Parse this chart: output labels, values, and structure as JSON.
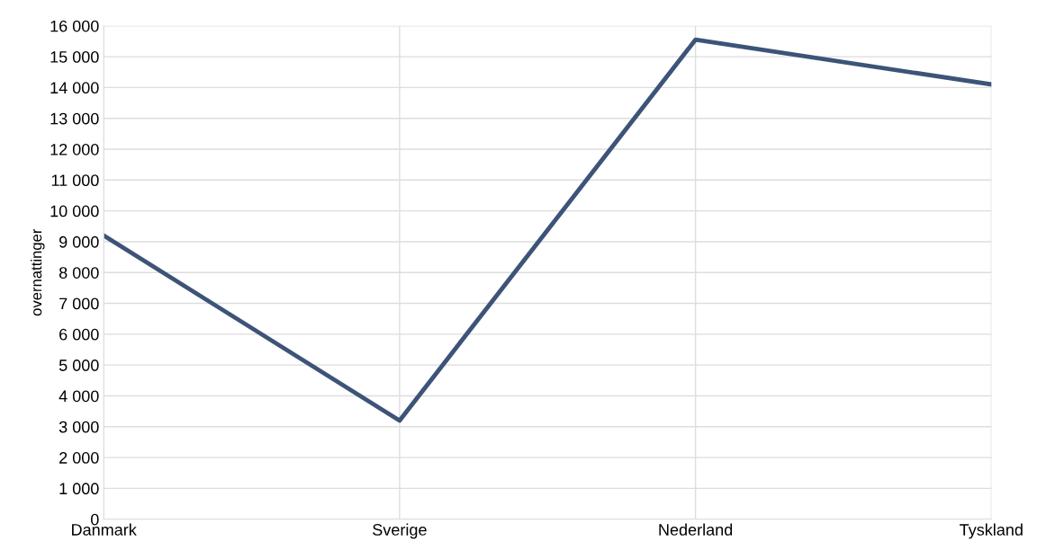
{
  "chart_data": {
    "type": "line",
    "ylabel": "overnattinger",
    "categories": [
      "Danmark",
      "Sverige",
      "Nederland",
      "Tyskland"
    ],
    "series": [
      {
        "color": "#3d5478",
        "values": [
          9200,
          3200,
          15550,
          14100
        ]
      }
    ],
    "ylim": [
      0,
      16000
    ],
    "yticks": [
      0,
      {
        "value": 1000,
        "label": "1 000"
      },
      {
        "value": 2000,
        "label": "2 000"
      },
      {
        "value": 3000,
        "label": "3 000"
      },
      {
        "value": 4000,
        "label": "4 000"
      },
      {
        "value": 5000,
        "label": "5 000"
      },
      {
        "value": 6000,
        "label": "6 000"
      },
      {
        "value": 7000,
        "label": "7 000"
      },
      {
        "value": 8000,
        "label": "8 000"
      },
      {
        "value": 9000,
        "label": "9 000"
      },
      {
        "value": 10000,
        "label": "10 000"
      },
      {
        "value": 11000,
        "label": "11 000"
      },
      {
        "value": 12000,
        "label": "12 000"
      },
      {
        "value": 13000,
        "label": "13 000"
      },
      {
        "value": 14000,
        "label": "14 000"
      },
      {
        "value": 15000,
        "label": "15 000"
      },
      {
        "value": 16000,
        "label": "16 000"
      }
    ],
    "grid": true,
    "legend": false
  }
}
